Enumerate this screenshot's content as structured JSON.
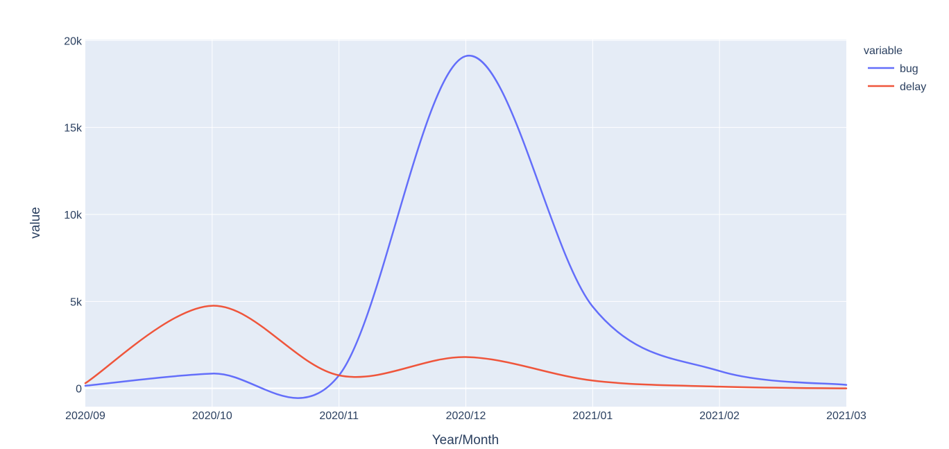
{
  "colors": {
    "plot_bg": "#E5ECF6",
    "grid": "#ffffff",
    "text": "#2a3f5f"
  },
  "chart_data": {
    "type": "line",
    "xlabel": "Year/Month",
    "ylabel": "value",
    "x": [
      "2020/09",
      "2020/10",
      "2020/11",
      "2020/12",
      "2021/01",
      "2021/02",
      "2021/03"
    ],
    "x_tick_labels": [
      "2020/09",
      "2020/10",
      "2020/11",
      "2020/12",
      "2021/01",
      "2021/02",
      "2021/03"
    ],
    "y_tick_labels": [
      "0",
      "5k",
      "10k",
      "15k",
      "20k"
    ],
    "y_ticks": [
      0,
      5000,
      10000,
      15000,
      20000
    ],
    "ylim": [
      -1050,
      20050
    ],
    "grid": true,
    "line_shape": "spline",
    "legend": {
      "title": "variable",
      "position": "top-right"
    },
    "series": [
      {
        "name": "bug",
        "color": "#636EFA",
        "values": [
          150,
          850,
          750,
          19100,
          4700,
          1000,
          200
        ]
      },
      {
        "name": "delay",
        "color": "#EF553B",
        "values": [
          300,
          4750,
          750,
          1800,
          450,
          100,
          0
        ]
      }
    ]
  }
}
